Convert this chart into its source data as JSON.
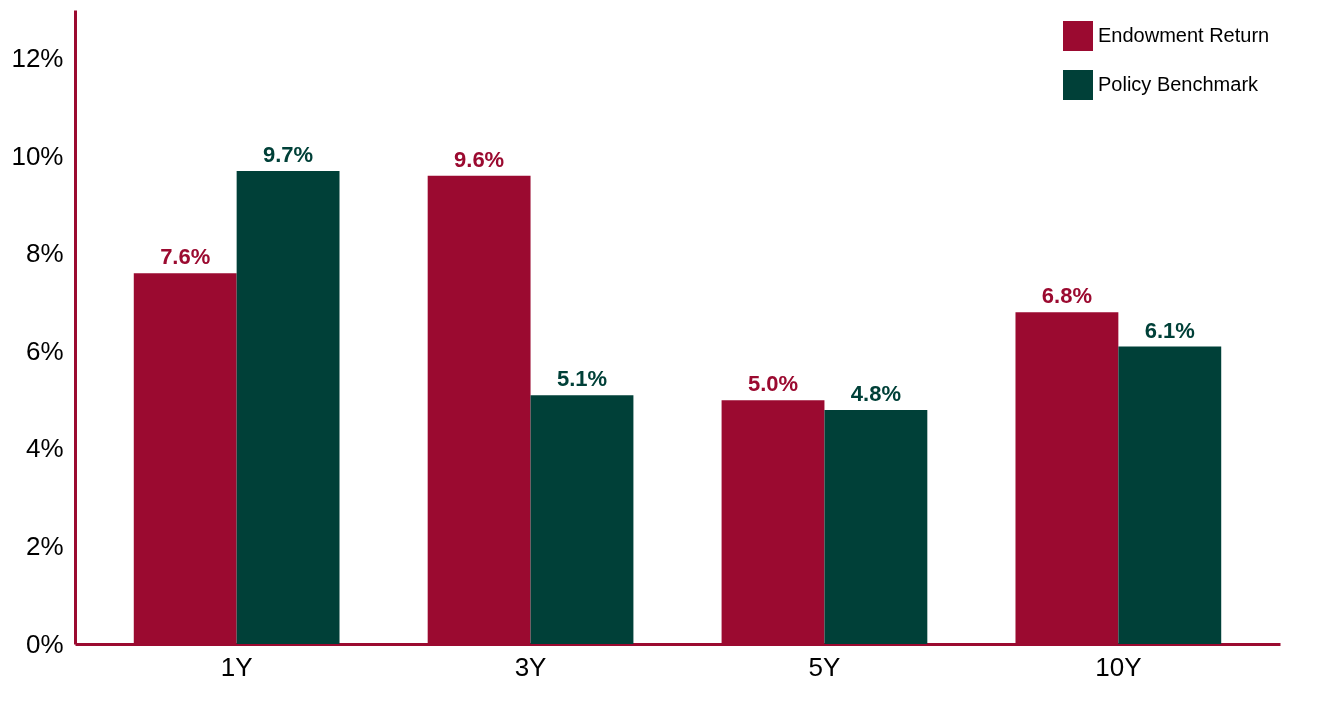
{
  "chart_data": {
    "type": "bar",
    "categories": [
      "1Y",
      "3Y",
      "5Y",
      "10Y"
    ],
    "series": [
      {
        "name": "Endowment Return",
        "color": "#9b0a30",
        "values": [
          7.6,
          9.6,
          5.0,
          6.8
        ],
        "value_labels": [
          "7.6%",
          "9.6%",
          "5.0%",
          "6.8%"
        ]
      },
      {
        "name": "Policy Benchmark",
        "color": "#004038",
        "values": [
          9.7,
          5.1,
          4.8,
          6.1
        ],
        "value_labels": [
          "9.7%",
          "5.1%",
          "4.8%",
          "6.1%"
        ]
      }
    ],
    "ylim": [
      0,
      13
    ],
    "yticks": [
      {
        "value": 0,
        "label": "0%"
      },
      {
        "value": 2,
        "label": "2%"
      },
      {
        "value": 4,
        "label": "4%"
      },
      {
        "value": 6,
        "label": "6%"
      },
      {
        "value": 8,
        "label": "8%"
      },
      {
        "value": 10,
        "label": "10%"
      },
      {
        "value": 12,
        "label": "12%"
      }
    ],
    "grid": false,
    "legend": "top right"
  }
}
